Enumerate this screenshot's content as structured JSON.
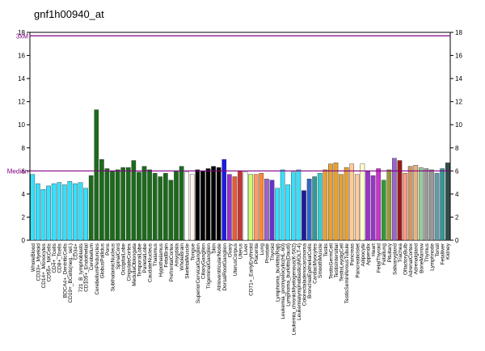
{
  "chart_data": {
    "type": "bar",
    "title": "gnf1h00940_at",
    "categories": [
      "WholeBlood",
      "CD33+_Myeloid",
      "CD14+_Monocytes",
      "CD56+_NKCells",
      "CD4+_Tcells",
      "CD8+_Tcells",
      "BDCA4+_DentriticCells",
      "CD19+_BCells(neg._sel.)",
      "CD34+",
      "721_B_lymphoblasts",
      "CD105+_Endothelial",
      "Cerebellum",
      "CerebellumPeduncles",
      "GlobusPallidus",
      "Pons",
      "SubthalamicNucleus",
      "SpinalCord",
      "OccipitalLobe",
      "CingulateCortex",
      "MedullaOblongata",
      "TemporalLobe",
      "ParietalLobe",
      "CaudateNucleus",
      "Thalamus",
      "Hypothalamus",
      "FetalBrain",
      "PrefrontalCortex",
      "Amygdala",
      "WholeBrain",
      "SkeletalMuscle",
      "Tongue",
      "SuperiorCervicalGanglion",
      "CiliaryGanglion",
      "TrigeminalGanglion",
      "Skin",
      "AtrioventricularNode",
      "DorsalRootGanglion",
      "Ovary",
      "UterusCorpus",
      "Uterus",
      "Liver",
      "CD71+_EarlyErythroid",
      "Placenta",
      "Lung",
      "Prostate",
      "Thyroid",
      "Lymphoma_burkitts(Raji)",
      "Leukemia_promyelocytic(HL-60)",
      "Lymphoma_burkitts(Daudi)",
      "Leukemia_chronicMyelogenous(K-562)",
      "Leukemialymphoblastic(MOLT-4)",
      "Colorectaladenocarcinoma",
      "BronchialEpithelialCells",
      "CardiacMyocytes",
      "SmoothMuscle",
      "Testis",
      "TestisGermCell",
      "TestisIntersitial",
      "TestisLeydigCell",
      "TestisSeminiferousTubule",
      "Pancreas",
      "PancreaticIslet",
      "Adipocyte",
      "Appendix",
      "Heart",
      "FetalThyroid",
      "Fetallung",
      "Pituitary",
      "Salivarygland",
      "Trachea",
      "OlfactoryBulb",
      "AdrenalCortex",
      "Adrenalgland",
      "BoneMarrow",
      "Thymus",
      "Lymphnode",
      "Tonsil",
      "Fetalliver",
      "Kidney"
    ],
    "values": [
      5.7,
      4.9,
      4.4,
      4.7,
      4.9,
      5.0,
      4.8,
      5.1,
      4.9,
      5.0,
      4.5,
      5.6,
      11.3,
      7.0,
      6.2,
      6.0,
      6.1,
      6.3,
      6.3,
      6.9,
      5.9,
      6.4,
      6.1,
      5.8,
      5.5,
      5.8,
      5.2,
      6.0,
      6.4,
      5.9,
      5.7,
      6.1,
      6.0,
      6.2,
      6.4,
      6.3,
      7.0,
      5.7,
      5.5,
      6.0,
      5.9,
      5.7,
      5.7,
      5.8,
      5.3,
      5.2,
      4.5,
      6.1,
      4.8,
      5.9,
      6.1,
      4.3,
      5.3,
      5.5,
      5.8,
      6.1,
      6.6,
      6.7,
      5.7,
      6.3,
      6.6,
      5.7,
      6.6,
      6.0,
      5.6,
      6.2,
      5.2,
      6.1,
      7.1,
      6.9,
      5.8,
      6.4,
      6.5,
      6.3,
      6.2,
      6.1,
      5.8,
      6.2,
      6.7
    ],
    "colors": [
      "#33e0ff",
      "#33e0ff",
      "#33e0ff",
      "#33e0ff",
      "#33e0ff",
      "#33e0ff",
      "#33e0ff",
      "#33e0ff",
      "#33e0ff",
      "#33e0ff",
      "#33e0ff",
      "#1a6b1a",
      "#1a6b1a",
      "#1a6b1a",
      "#1a6b1a",
      "#1a6b1a",
      "#1a6b1a",
      "#1a6b1a",
      "#1a6b1a",
      "#1a6b1a",
      "#1a6b1a",
      "#1a6b1a",
      "#1a6b1a",
      "#1a6b1a",
      "#1a6b1a",
      "#1a6b1a",
      "#1a6b1a",
      "#1a6b1a",
      "#1a6b1a",
      "#ffffff",
      "#fff5e6",
      "#000000",
      "#000000",
      "#000000",
      "#000000",
      "#000000",
      "#1a1ae6",
      "#9933cc",
      "#e65c33",
      "#cc3333",
      "#ffffff",
      "#ccff66",
      "#ff9966",
      "#ff8833",
      "#9966cc",
      "#6633cc",
      "#33e0ff",
      "#33e0ff",
      "#33e0ff",
      "#33e0ff",
      "#33e0ff",
      "#1a1a99",
      "#3366cc",
      "#339999",
      "#33cccc",
      "#e6a033",
      "#e6a033",
      "#e6a033",
      "#e6a033",
      "#e6a033",
      "#ffcc99",
      "#ffcc99",
      "#ffffcc",
      "#9933cc",
      "#9933cc",
      "#cc33cc",
      "#339933",
      "#999933",
      "#9966cc",
      "#991a1a",
      "#ff9980",
      "#cc9966",
      "#e6b380",
      "#99cc99",
      "#999999",
      "#999999",
      "#6699aa",
      "#339999",
      "#2f4f4f"
    ],
    "ylim": [
      0,
      18
    ],
    "yticks": [
      0,
      2,
      4,
      6,
      8,
      10,
      12,
      14,
      16,
      18
    ],
    "reference_lines": [
      {
        "label": "3xM",
        "value": 17.7
      },
      {
        "label": "Median",
        "value": 6.0
      }
    ]
  }
}
